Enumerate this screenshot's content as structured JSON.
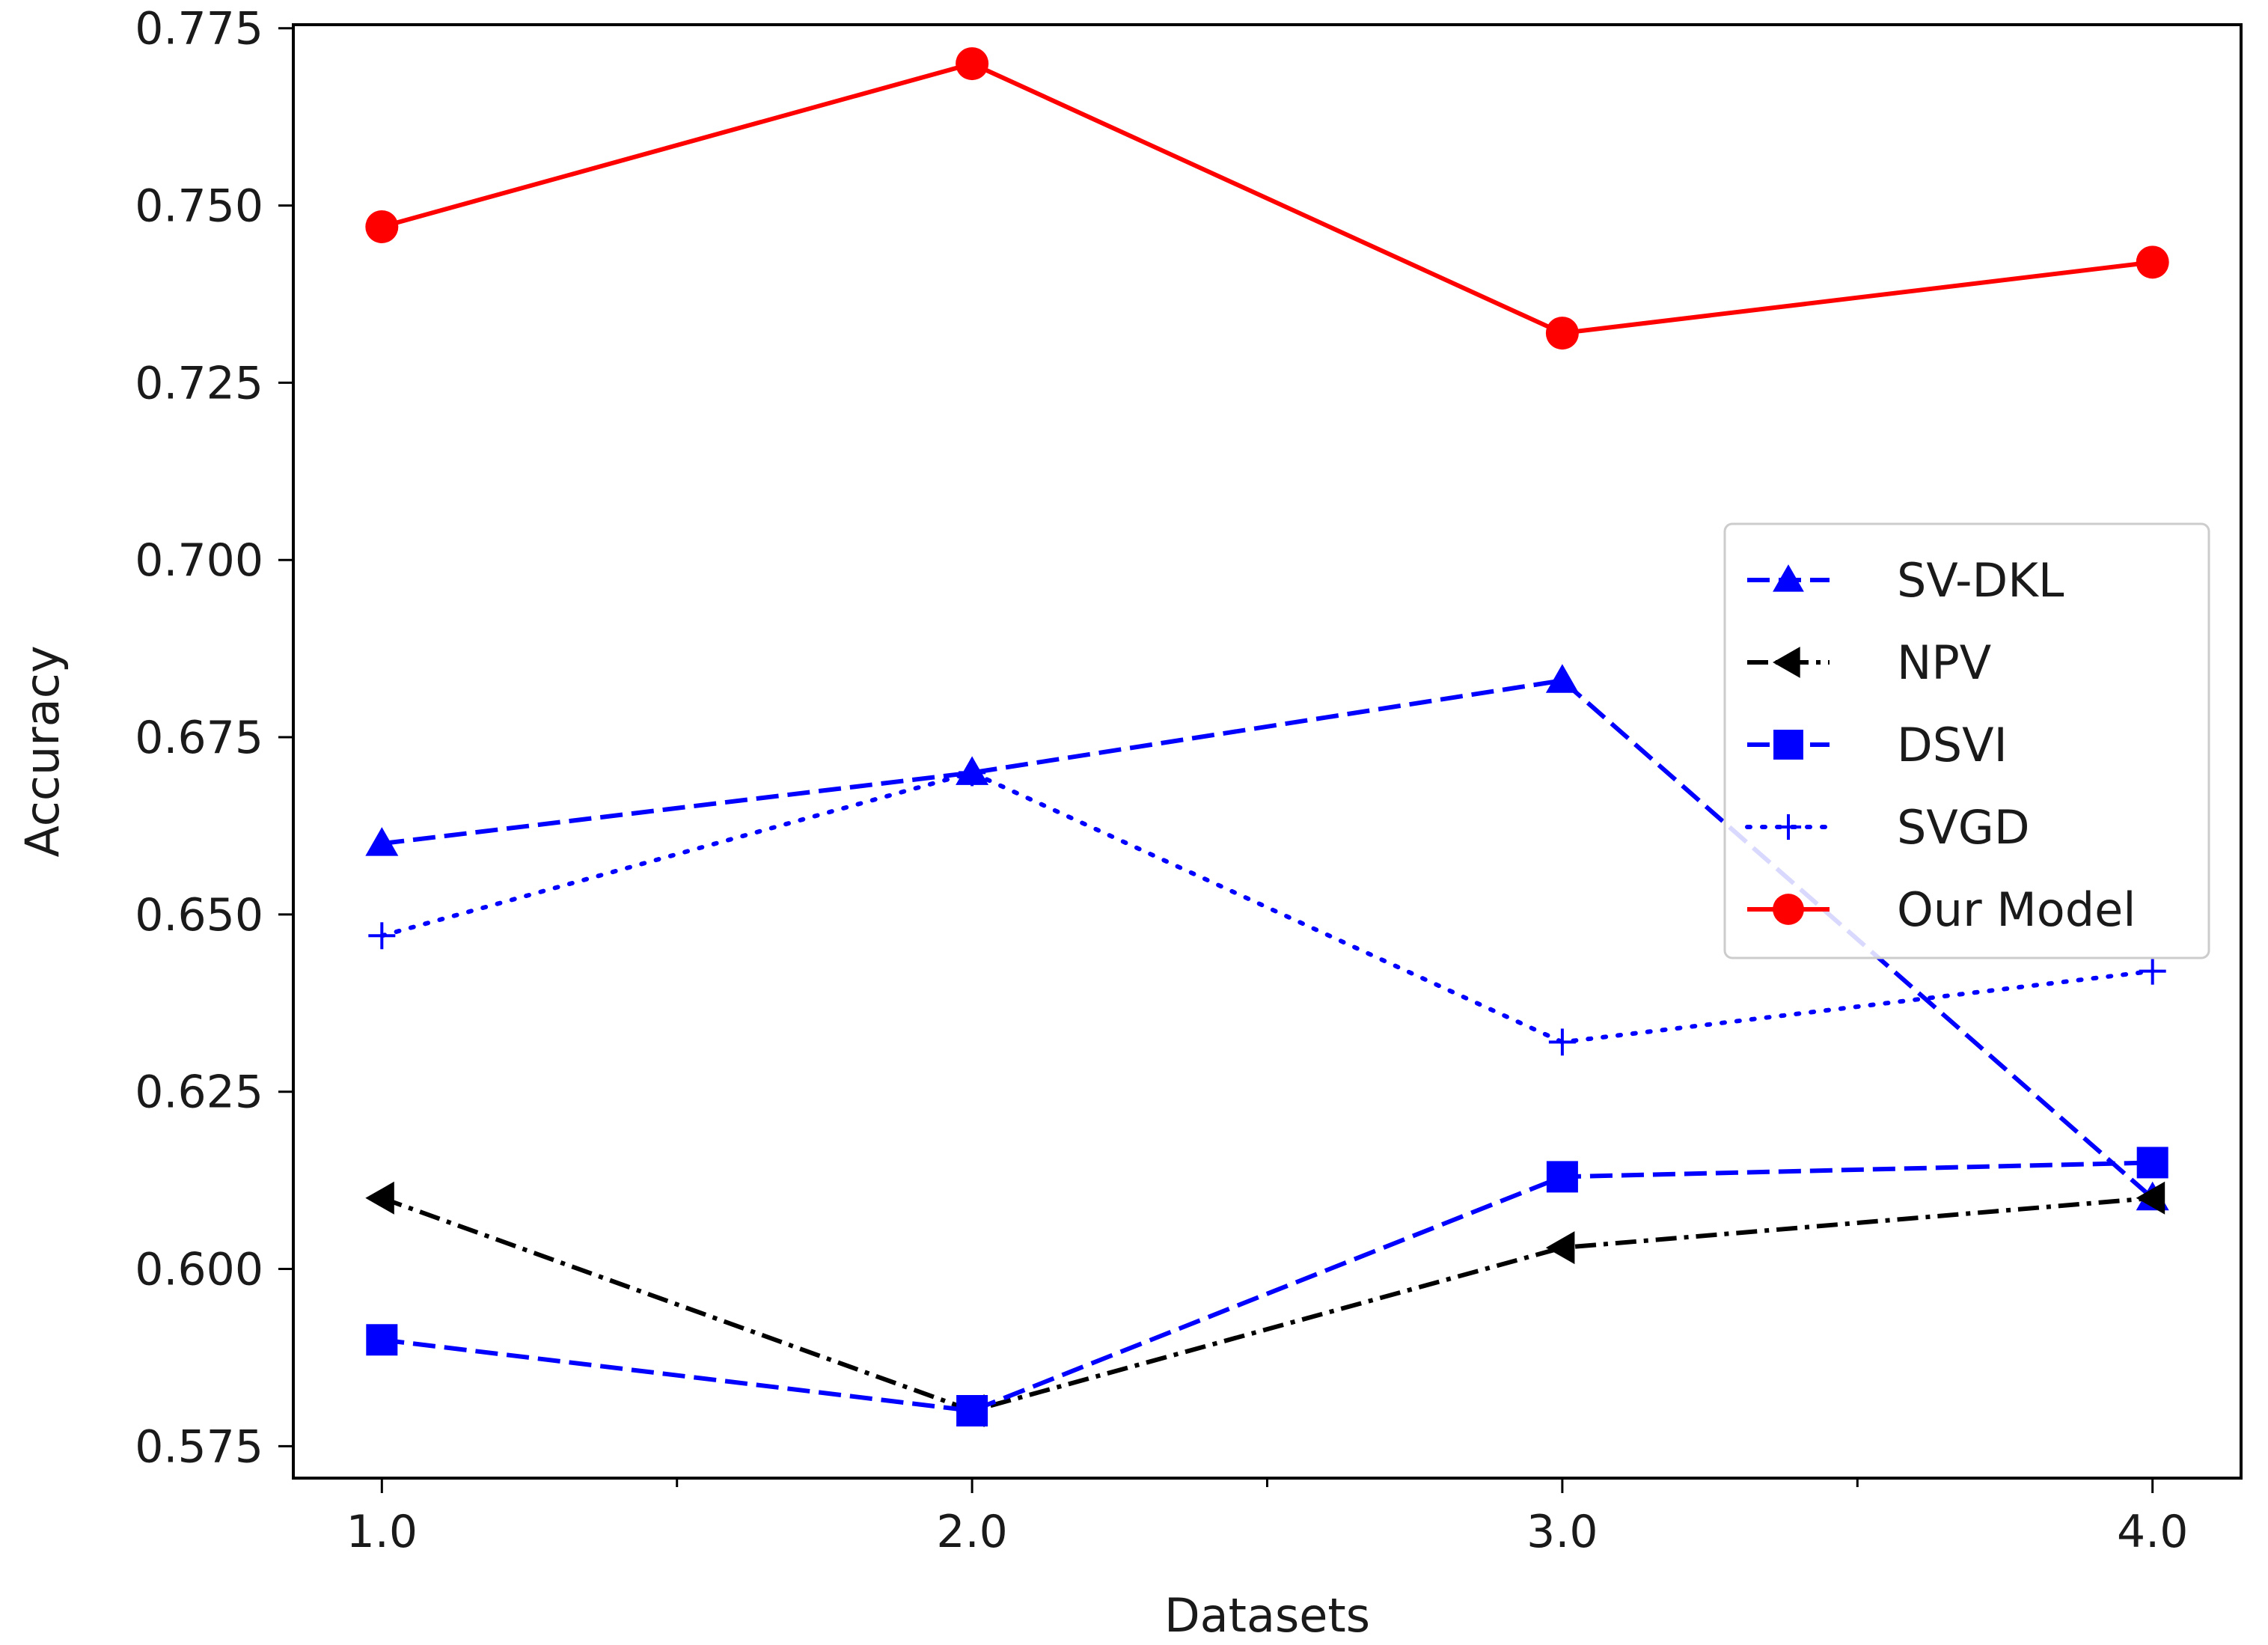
{
  "chart_data": {
    "type": "line",
    "title": "",
    "xlabel": "Datasets",
    "ylabel": "Accuracy",
    "xlim": [
      0.85,
      4.15
    ],
    "ylim": [
      0.5705,
      0.7755
    ],
    "x": [
      1.0,
      2.0,
      3.0,
      4.0
    ],
    "x_major_ticks": [
      {
        "value": 1.0,
        "label": "1.0"
      },
      {
        "value": 2.0,
        "label": "2.0"
      },
      {
        "value": 3.0,
        "label": "3.0"
      },
      {
        "value": 4.0,
        "label": "4.0"
      }
    ],
    "x_minor_ticks": [
      1.5,
      2.5,
      3.5
    ],
    "y_ticks": [
      {
        "value": 0.575,
        "label": "0.575"
      },
      {
        "value": 0.6,
        "label": "0.600"
      },
      {
        "value": 0.625,
        "label": "0.625"
      },
      {
        "value": 0.65,
        "label": "0.650"
      },
      {
        "value": 0.675,
        "label": "0.675"
      },
      {
        "value": 0.7,
        "label": "0.700"
      },
      {
        "value": 0.725,
        "label": "0.725"
      },
      {
        "value": 0.75,
        "label": "0.750"
      },
      {
        "value": 0.775,
        "label": "0.775"
      }
    ],
    "grid": false,
    "legend_position": "center-right",
    "series": [
      {
        "name": "SV-DKL",
        "values": [
          0.66,
          0.67,
          0.683,
          0.61
        ],
        "color": "#0000ff",
        "line_style": "dashed",
        "marker": "triangle-up"
      },
      {
        "name": "NPV",
        "values": [
          0.61,
          0.58,
          0.603,
          0.61
        ],
        "color": "#000000",
        "line_style": "dash-dot",
        "marker": "triangle-left"
      },
      {
        "name": "DSVI",
        "values": [
          0.59,
          0.58,
          0.613,
          0.615
        ],
        "color": "#0000ff",
        "line_style": "dashed",
        "marker": "square"
      },
      {
        "name": "SVGD",
        "values": [
          0.647,
          0.67,
          0.632,
          0.642
        ],
        "color": "#0000ff",
        "line_style": "dotted",
        "marker": "plus"
      },
      {
        "name": "Our Model",
        "values": [
          0.747,
          0.77,
          0.732,
          0.742
        ],
        "color": "#ff0000",
        "line_style": "solid",
        "marker": "circle"
      }
    ]
  }
}
